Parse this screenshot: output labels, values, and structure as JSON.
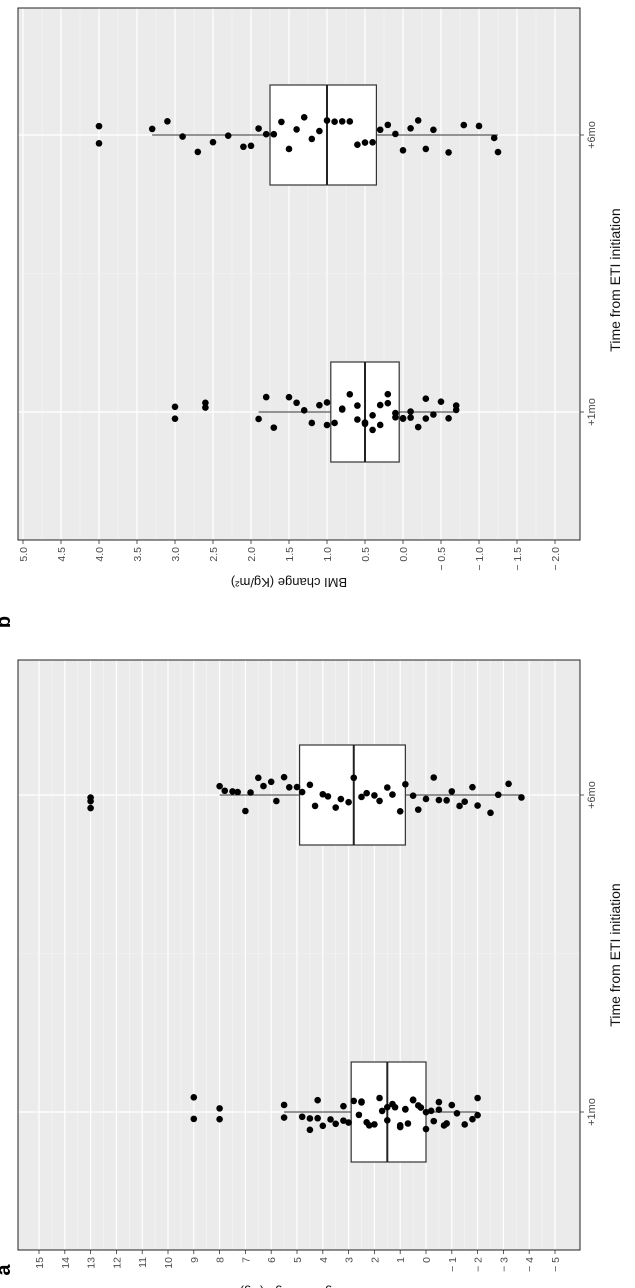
{
  "chart_data": [
    {
      "panel_label": "a",
      "type": "box",
      "orientation": "rotated-90-ccw",
      "xlabel": "Time from ETI initiation",
      "ylabel": "Weight change (Kg)",
      "categories": [
        "+1mo",
        "+6mo"
      ],
      "ylim": [
        -5.5,
        15.5
      ],
      "yticks": [
        -5,
        -4,
        -3,
        -2,
        -1,
        0,
        1,
        2,
        3,
        4,
        5,
        6,
        7,
        8,
        9,
        10,
        11,
        12,
        13,
        14,
        15
      ],
      "ytick_labels": [
        "− 5",
        "− 4",
        "− 3",
        "− 2",
        "− 1",
        "0",
        "1",
        "2",
        "3",
        "4",
        "5",
        "6",
        "7",
        "8",
        "9",
        "10",
        "11",
        "12",
        "13",
        "14",
        "15"
      ],
      "boxes": [
        {
          "category": "+1mo",
          "q1": 0.0,
          "median": 1.5,
          "q3": 2.9,
          "whisker_low": -2.0,
          "whisker_high": 5.5,
          "outliers": [
            9.0,
            9.0,
            8.0,
            8.0
          ]
        },
        {
          "category": "+6mo",
          "q1": 0.8,
          "median": 2.8,
          "q3": 4.9,
          "whisker_low": -3.7,
          "whisker_high": 8.0,
          "outliers": [
            13.0,
            13.0,
            13.0
          ]
        }
      ],
      "points": [
        {
          "category": "+1mo",
          "values": [
            5.5,
            5.5,
            4.8,
            4.5,
            4.5,
            4.2,
            4.2,
            4.0,
            3.7,
            3.5,
            3.2,
            3.2,
            3.0,
            2.8,
            2.6,
            2.5,
            2.5,
            2.3,
            2.2,
            2.0,
            1.8,
            1.7,
            1.5,
            1.5,
            1.3,
            1.2,
            1.0,
            1.0,
            0.8,
            0.8,
            0.7,
            0.5,
            0.5,
            0.3,
            0.2,
            0.0,
            0.0,
            -0.2,
            -0.3,
            -0.5,
            -0.5,
            -0.7,
            -0.8,
            -1.0,
            -1.2,
            -1.5,
            -1.8,
            -2.0,
            -2.0,
            9.0,
            9.0,
            8.0,
            8.0
          ]
        },
        {
          "category": "+6mo",
          "values": [
            8.0,
            7.8,
            7.5,
            7.3,
            7.0,
            6.8,
            6.5,
            6.3,
            6.0,
            5.8,
            5.5,
            5.3,
            5.0,
            4.8,
            4.5,
            4.3,
            4.0,
            3.8,
            3.5,
            3.3,
            3.0,
            2.8,
            2.5,
            2.3,
            2.0,
            1.8,
            1.5,
            1.3,
            1.0,
            0.8,
            0.5,
            0.3,
            0.0,
            -0.3,
            -0.5,
            -0.8,
            -1.0,
            -1.3,
            -1.5,
            -1.8,
            -2.0,
            -2.5,
            -2.8,
            -3.2,
            -3.7,
            13.0,
            13.0,
            13.0
          ]
        }
      ]
    },
    {
      "panel_label": "b",
      "type": "box",
      "orientation": "rotated-90-ccw",
      "xlabel": "Time from ETI initiation",
      "ylabel": "BMI change (Kg/m²)",
      "categories": [
        "+1mo",
        "+6mo"
      ],
      "ylim": [
        -2.25,
        5.25
      ],
      "yticks": [
        -2.0,
        -1.5,
        -1.0,
        -0.5,
        0.0,
        0.5,
        1.0,
        1.5,
        2.0,
        2.5,
        3.0,
        3.5,
        4.0,
        4.5,
        5.0
      ],
      "ytick_labels": [
        "− 2.0",
        "− 1.5",
        "− 1.0",
        "− 0.5",
        "0.0",
        "0.5",
        "1.0",
        "1.5",
        "2.0",
        "2.5",
        "3.0",
        "3.5",
        "4.0",
        "4.5",
        "5.0"
      ],
      "boxes": [
        {
          "category": "+1mo",
          "q1": 0.05,
          "median": 0.5,
          "q3": 0.95,
          "whisker_low": -0.7,
          "whisker_high": 1.9,
          "outliers": [
            3.0,
            3.0,
            2.6,
            2.6
          ]
        },
        {
          "category": "+6mo",
          "q1": 0.35,
          "median": 1.0,
          "q3": 1.75,
          "whisker_low": -1.25,
          "whisker_high": 3.3,
          "outliers": [
            4.0,
            4.0
          ]
        }
      ],
      "points": [
        {
          "category": "+1mo",
          "values": [
            1.9,
            1.8,
            1.7,
            1.5,
            1.4,
            1.3,
            1.2,
            1.1,
            1.0,
            1.0,
            0.9,
            0.8,
            0.8,
            0.7,
            0.6,
            0.6,
            0.5,
            0.5,
            0.4,
            0.4,
            0.3,
            0.3,
            0.2,
            0.2,
            0.1,
            0.1,
            0.0,
            0.0,
            -0.1,
            -0.1,
            -0.2,
            -0.3,
            -0.3,
            -0.4,
            -0.5,
            -0.6,
            -0.7,
            -0.7,
            3.0,
            3.0,
            2.6,
            2.6
          ]
        },
        {
          "category": "+6mo",
          "values": [
            3.3,
            3.1,
            2.9,
            2.7,
            2.5,
            2.3,
            2.1,
            2.0,
            1.9,
            1.8,
            1.7,
            1.6,
            1.5,
            1.4,
            1.3,
            1.2,
            1.1,
            1.0,
            0.9,
            0.8,
            0.7,
            0.6,
            0.5,
            0.4,
            0.3,
            0.2,
            0.1,
            0.0,
            -0.1,
            -0.2,
            -0.3,
            -0.4,
            -0.6,
            -0.8,
            -1.0,
            -1.2,
            -1.25,
            4.0,
            4.0
          ]
        }
      ]
    }
  ]
}
